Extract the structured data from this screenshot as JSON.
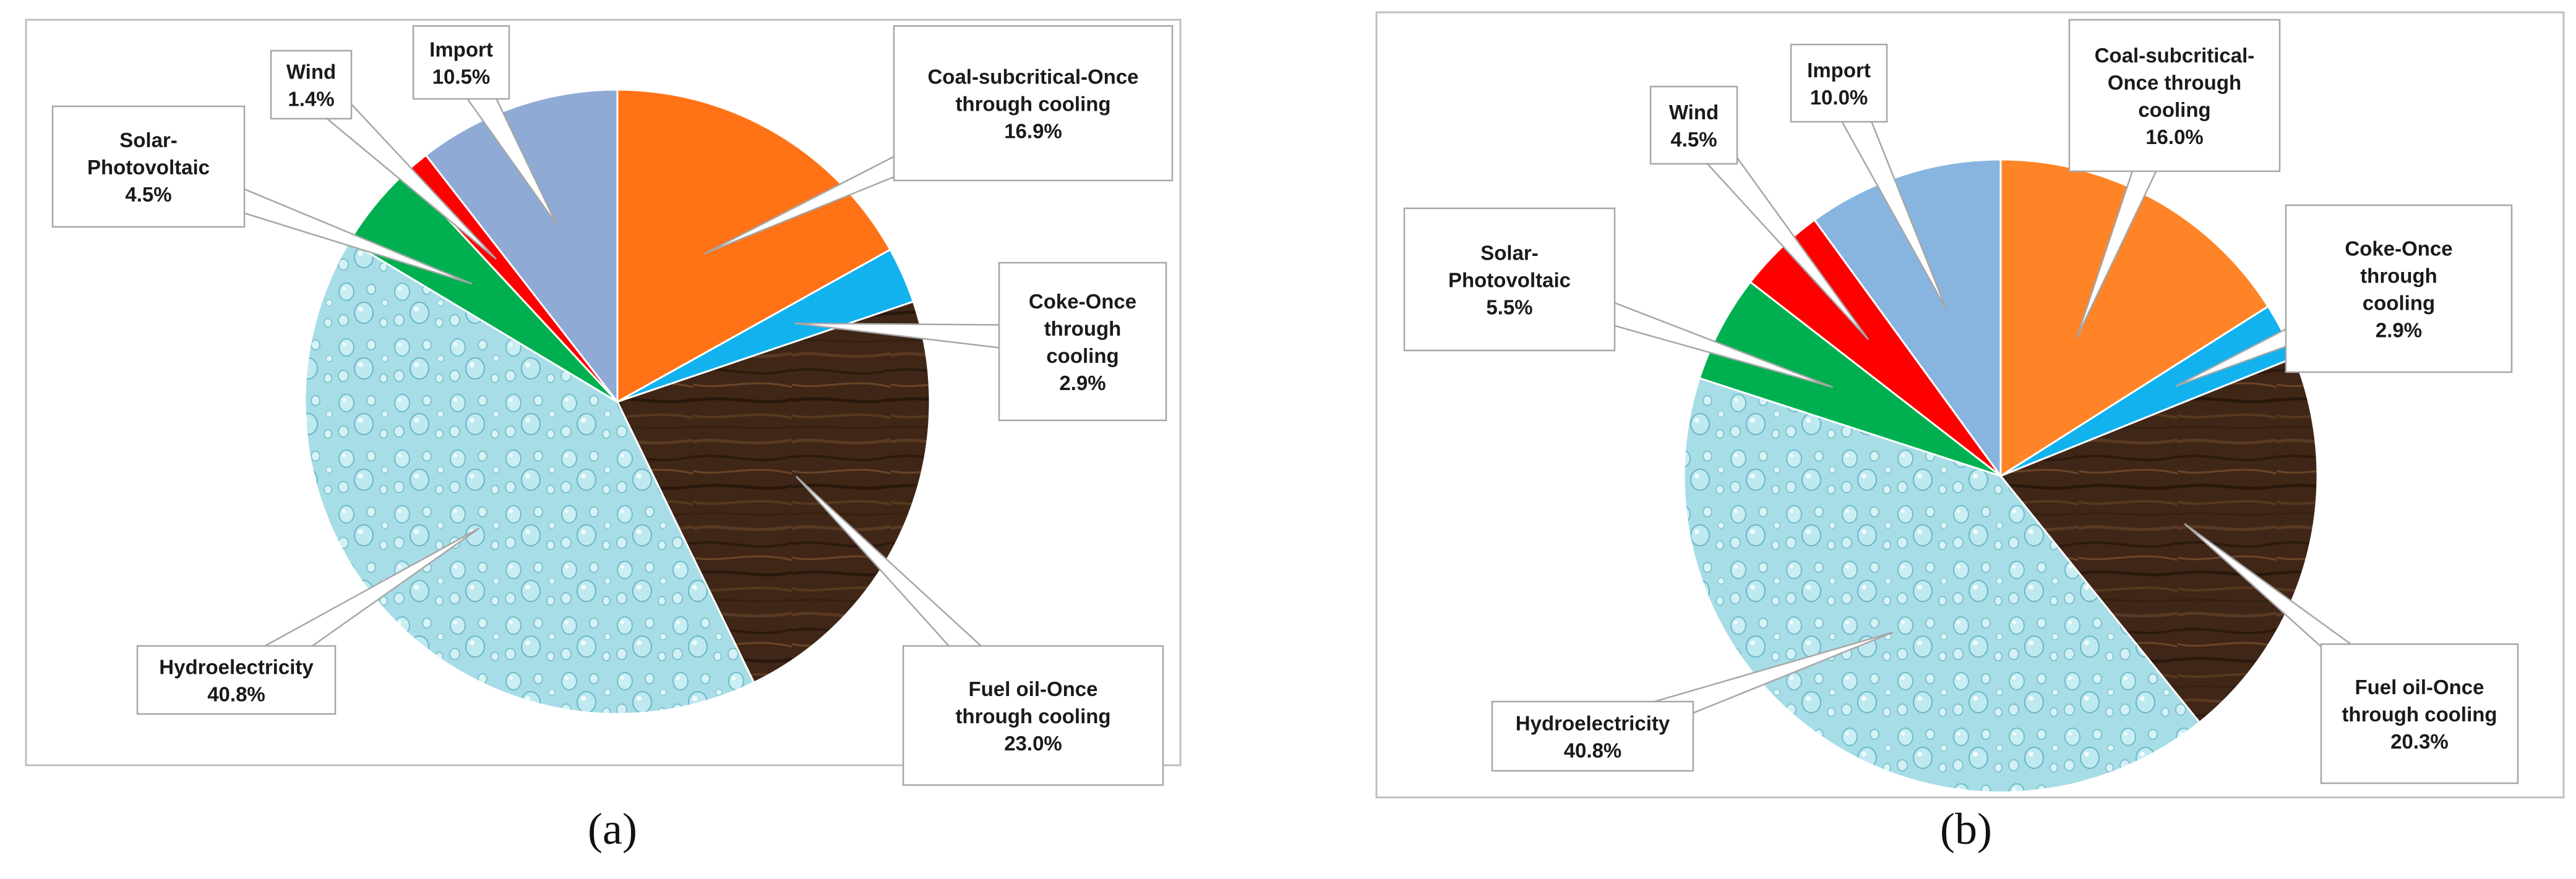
{
  "panels": [
    {
      "caption": "(a)"
    },
    {
      "caption": "(b)"
    }
  ],
  "chart_data": [
    {
      "type": "pie",
      "title": "",
      "slices": [
        {
          "label": "Coal-subcritical-Once through cooling",
          "value_text": "16.9%",
          "value": 16.9,
          "color": "#ff7316"
        },
        {
          "label": "Coke-Once through cooling",
          "value_text": "2.9%",
          "value": 2.9,
          "color": "#12b2ee"
        },
        {
          "label": "Fuel oil-Once through cooling",
          "value_text": "23.0%",
          "value": 23.0,
          "color": "#3f2617",
          "fill": "wood"
        },
        {
          "label": "Hydroelectricity",
          "value_text": "40.8%",
          "value": 40.8,
          "color": "#a9dfe6",
          "fill": "water"
        },
        {
          "label": "Solar-Photovoltaic",
          "value_text": "4.5%",
          "value": 4.5,
          "color": "#00b050"
        },
        {
          "label": "Wind",
          "value_text": "1.4%",
          "value": 1.4,
          "color": "#ff0000"
        },
        {
          "label": "Import",
          "value_text": "10.5%",
          "value": 10.5,
          "color": "#8eaad5"
        }
      ]
    },
    {
      "type": "pie",
      "title": "",
      "slices": [
        {
          "label": "Coal-subcritical-Once through cooling",
          "value_text": "16.0%",
          "value": 16.0,
          "color": "#ff8427"
        },
        {
          "label": "Coke-Once through cooling",
          "value_text": "2.9%",
          "value": 2.9,
          "color": "#12b2ee"
        },
        {
          "label": "Fuel oil-Once through cooling",
          "value_text": "20.3%",
          "value": 20.3,
          "color": "#3f2617",
          "fill": "wood"
        },
        {
          "label": "Hydroelectricity",
          "value_text": "40.8%",
          "value": 40.8,
          "color": "#a9dfe6",
          "fill": "water"
        },
        {
          "label": "Solar-Photovoltaic",
          "value_text": "5.5%",
          "value": 5.5,
          "color": "#00b050"
        },
        {
          "label": "Wind",
          "value_text": "4.5%",
          "value": 4.5,
          "color": "#ff0000"
        },
        {
          "label": "Import",
          "value_text": "10.0%",
          "value": 10.0,
          "color": "#88b5e0"
        }
      ]
    }
  ]
}
